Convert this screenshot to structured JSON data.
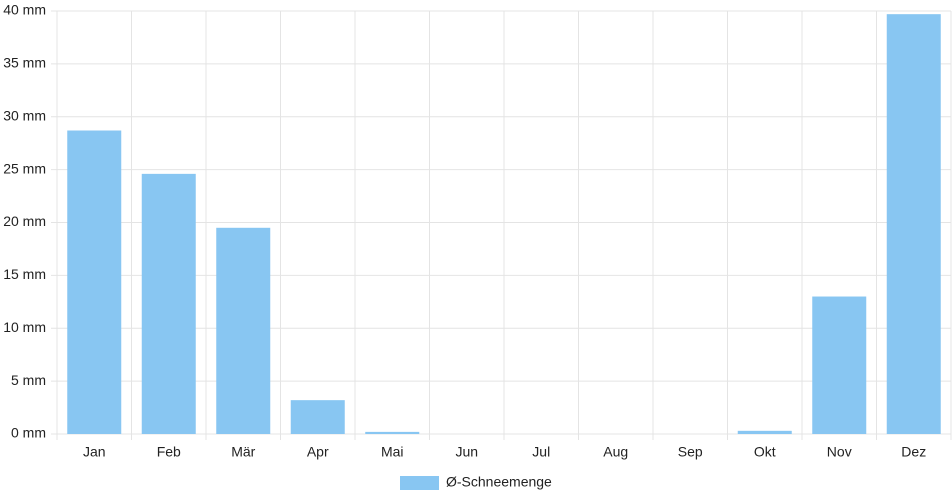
{
  "chart_data": {
    "type": "bar",
    "categories": [
      "Jan",
      "Feb",
      "Mär",
      "Apr",
      "Mai",
      "Jun",
      "Jul",
      "Aug",
      "Sep",
      "Okt",
      "Nov",
      "Dez"
    ],
    "series": [
      {
        "name": "Ø-Schneemenge",
        "color": "#88c6f2",
        "values": [
          28.7,
          24.6,
          19.5,
          3.2,
          0.2,
          0,
          0,
          0,
          0,
          0.3,
          13.0,
          39.7
        ]
      }
    ],
    "ylim": [
      0,
      40
    ],
    "yticks": [
      {
        "value": 0,
        "label": "0 mm"
      },
      {
        "value": 5,
        "label": "5 mm"
      },
      {
        "value": 10,
        "label": "10 mm"
      },
      {
        "value": 15,
        "label": "15 mm"
      },
      {
        "value": 20,
        "label": "20 mm"
      },
      {
        "value": 25,
        "label": "25 mm"
      },
      {
        "value": 30,
        "label": "30 mm"
      },
      {
        "value": 35,
        "label": "35 mm"
      },
      {
        "value": 40,
        "label": "40 mm"
      }
    ],
    "grid": true,
    "legend": "bottom"
  }
}
